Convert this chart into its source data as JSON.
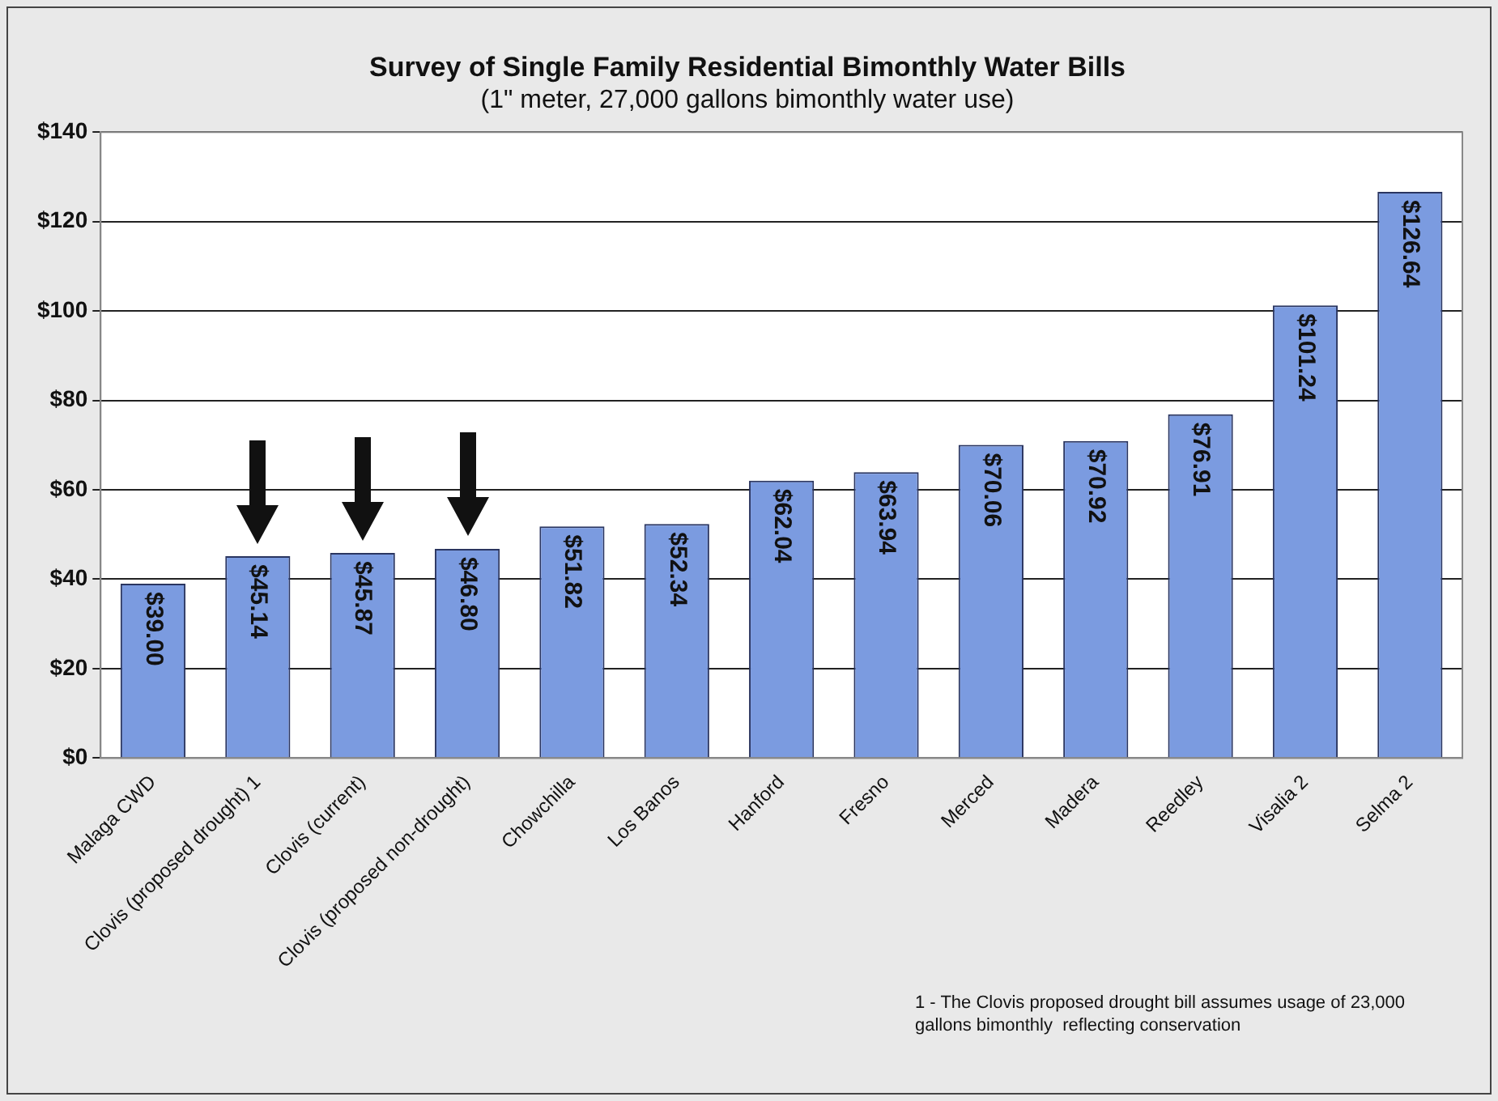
{
  "chart_data": {
    "type": "bar",
    "title": "Survey of Single Family Residential Bimonthly Water Bills",
    "subtitle": "(1\" meter, 27,000 gallons bimonthly water use)",
    "categories": [
      "Malaga CWD",
      "Clovis (proposed drought) 1",
      "Clovis (current)",
      "Clovis (proposed non-drought)",
      "Chowchilla",
      "Los Banos",
      "Hanford",
      "Fresno",
      "Merced",
      "Madera",
      "Reedley",
      "Visalia 2",
      "Selma 2"
    ],
    "values": [
      39.0,
      45.14,
      45.87,
      46.8,
      51.82,
      52.34,
      62.04,
      63.94,
      70.06,
      70.92,
      76.91,
      101.24,
      126.64
    ],
    "value_labels": [
      "$39.00",
      "$45.14",
      "$45.87",
      "$46.80",
      "$51.82",
      "$52.34",
      "$62.04",
      "$63.94",
      "$70.06",
      "$70.92",
      "$76.91",
      "$101.24",
      "$126.64"
    ],
    "color": "#7b9be0",
    "ylim": [
      0,
      140
    ],
    "yticks": [
      {
        "value": 0,
        "label": "$0"
      },
      {
        "value": 20,
        "label": "$20"
      },
      {
        "value": 40,
        "label": "$40"
      },
      {
        "value": 60,
        "label": "$60"
      },
      {
        "value": 80,
        "label": "$80"
      },
      {
        "value": 100,
        "label": "$100"
      },
      {
        "value": 120,
        "label": "$120"
      },
      {
        "value": 140,
        "label": "$140"
      }
    ],
    "grid": "y",
    "legend": false,
    "annotations": [
      "1 - The Clovis proposed drought bill assumes usage of 23,000 gallons bimonthly  reflecting conservation"
    ]
  }
}
